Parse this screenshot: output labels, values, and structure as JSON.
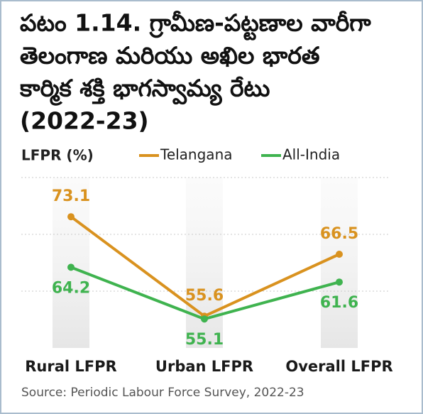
{
  "chart_data": {
    "type": "line",
    "title": [
      "పటం 1.14. గ్రామీణ-పట్టణాల వారీగా",
      "తెలంగాణ మరియు అఖిల భారత",
      "కార్మిక శక్తి భాగస్వామ్య రేటు",
      "(2022-23)"
    ],
    "y_label": "LFPR (%)",
    "categories": [
      "Rural LFPR",
      "Urban LFPR",
      "Overall LFPR"
    ],
    "series": [
      {
        "name": "Telangana",
        "color": "#d9921f",
        "values": [
          73.1,
          55.6,
          66.5
        ]
      },
      {
        "name": "All-India",
        "color": "#3fb34f",
        "values": [
          64.2,
          55.1,
          61.6
        ]
      }
    ],
    "ylim": [
      50,
      80
    ],
    "yticks": [
      60,
      70,
      80
    ],
    "grid": true,
    "source": "Source: Periodic Labour Force Survey, 2022-23"
  }
}
